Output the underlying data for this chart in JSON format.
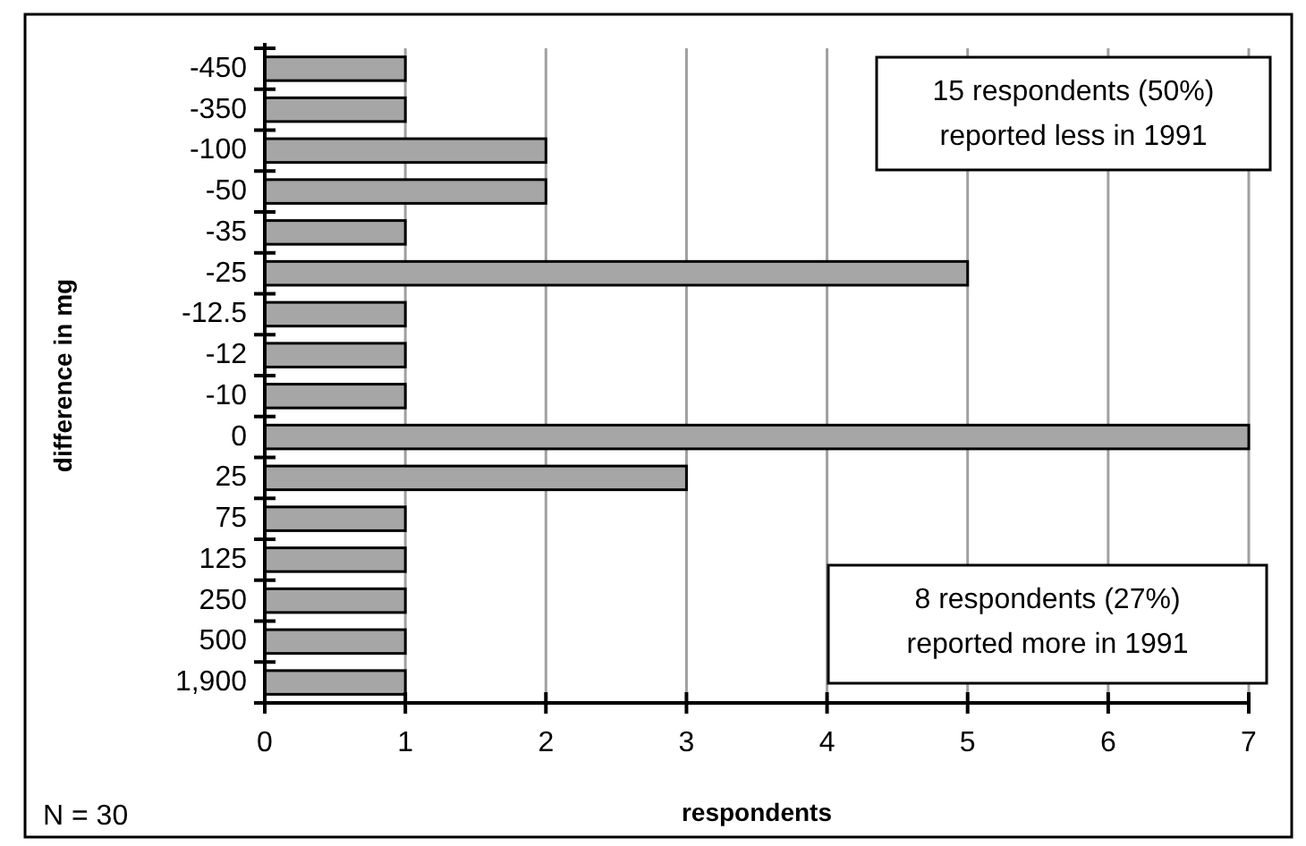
{
  "chart_data": {
    "type": "bar",
    "orientation": "horizontal",
    "xlabel": "respondents",
    "ylabel": "difference in mg",
    "categories": [
      "-450",
      "-350",
      "-100",
      "-50",
      "-35",
      "-25",
      "-12.5",
      "-12",
      "-10",
      "0",
      "25",
      "75",
      "125",
      "250",
      "500",
      "1,900"
    ],
    "values": [
      1,
      1,
      2,
      2,
      1,
      5,
      1,
      1,
      1,
      7,
      3,
      1,
      1,
      1,
      1,
      1
    ],
    "color": "#a6a6a6",
    "xlim": [
      0,
      7
    ],
    "xticks": [
      0,
      1,
      2,
      3,
      4,
      5,
      6,
      7
    ],
    "grid": "x",
    "annotations": [
      "15 respondents (50%)\nreported less in 1991",
      "8 respondents (27%)\nreported more in 1991",
      "N = 30"
    ]
  }
}
